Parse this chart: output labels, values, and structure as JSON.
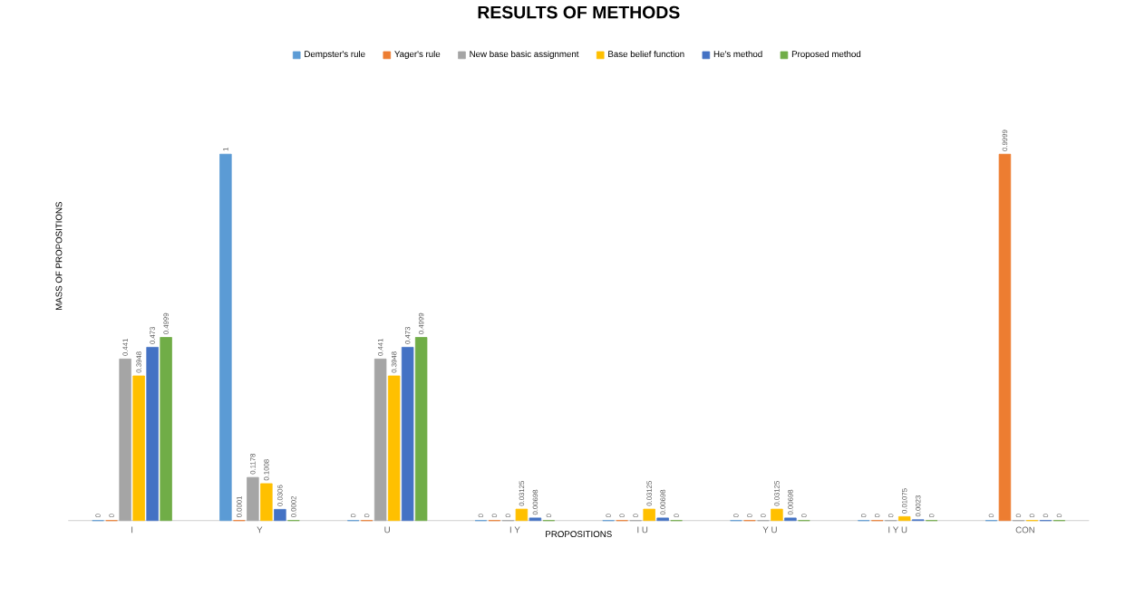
{
  "chart_data": {
    "type": "bar",
    "title": "RESULTS OF METHODS",
    "xlabel": "PROPOSITIONS",
    "ylabel": "MASS OF PROPOSITIONS",
    "categories": [
      "I",
      "Y",
      "U",
      "I Y",
      "I U",
      "Y U",
      "I Y U",
      "CON"
    ],
    "series": [
      {
        "name": "Dempster's rule",
        "color": "#5b9bd5",
        "values": [
          0,
          1,
          0,
          0,
          0,
          0,
          0,
          0
        ]
      },
      {
        "name": "Yager's rule",
        "color": "#ed7d31",
        "values": [
          0,
          0.0001,
          0,
          0,
          0,
          0,
          0,
          0.9999
        ]
      },
      {
        "name": "New base basic assignment",
        "color": "#a5a5a5",
        "values": [
          0.441,
          0.1178,
          0.441,
          0,
          0,
          0,
          0,
          0
        ]
      },
      {
        "name": "Base belief function",
        "color": "#ffc000",
        "values": [
          0.3948,
          0.1008,
          0.3948,
          0.03125,
          0.03125,
          0.03125,
          0.01075,
          0
        ]
      },
      {
        "name": "He's method",
        "color": "#4472c4",
        "values": [
          0.473,
          0.0306,
          0.473,
          0.00698,
          0.00698,
          0.00698,
          0.0023,
          0
        ]
      },
      {
        "name": "Proposed method",
        "color": "#70ad47",
        "values": [
          0.4999,
          0.0002,
          0.4999,
          0,
          0,
          0,
          0,
          0
        ]
      }
    ],
    "data_labels": true,
    "legend": "top",
    "tick_labels": "x"
  }
}
